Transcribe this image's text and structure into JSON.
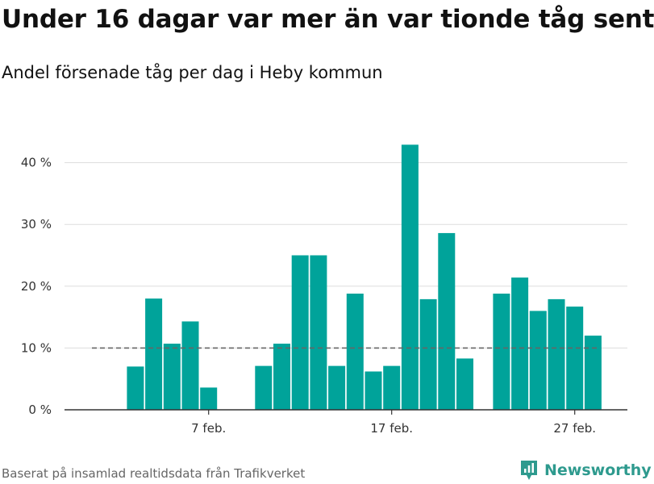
{
  "header": {
    "title": "Under 16 dagar var mer än var tionde tåg sent",
    "subtitle": "Andel försenade tåg per dag i Heby kommun"
  },
  "footer": {
    "source": "Baserat på insamlad realtidsdata från Trafikverket",
    "brand": "Newsworthy"
  },
  "colors": {
    "bar": "#00a39a",
    "reference_line": "#666666",
    "grid": "#dddddd",
    "axis": "#333333",
    "brand": "#2e9a8e"
  },
  "chart_data": {
    "type": "bar",
    "categories": [
      "1 feb.",
      "2 feb.",
      "3 feb.",
      "4 feb.",
      "5 feb.",
      "6 feb.",
      "7 feb.",
      "8 feb.",
      "9 feb.",
      "10 feb.",
      "11 feb.",
      "12 feb.",
      "13 feb.",
      "14 feb.",
      "15 feb.",
      "16 feb.",
      "17 feb.",
      "18 feb.",
      "19 feb.",
      "20 feb.",
      "21 feb.",
      "22 feb.",
      "23 feb.",
      "24 feb.",
      "25 feb.",
      "26 feb.",
      "27 feb.",
      "28 feb."
    ],
    "values": [
      null,
      null,
      7,
      18,
      10.7,
      14.3,
      3.6,
      null,
      null,
      7.1,
      10.7,
      25,
      25,
      7.1,
      18.8,
      6.2,
      7.1,
      42.9,
      17.9,
      28.6,
      8.3,
      null,
      18.8,
      21.4,
      16,
      17.9,
      16.7,
      12
    ],
    "reference_value": 10,
    "x_tick_labels": [
      {
        "category": "7 feb.",
        "label": "7 feb."
      },
      {
        "category": "17 feb.",
        "label": "17 feb."
      },
      {
        "category": "27 feb.",
        "label": "27 feb."
      }
    ],
    "y_ticks": [
      0,
      10,
      20,
      30,
      40
    ],
    "y_tick_labels": [
      "0 %",
      "10 %",
      "20 %",
      "30 %",
      "40 %"
    ],
    "ylim": [
      0,
      43
    ],
    "grid": true,
    "title": "Under 16 dagar var mer än var tionde tåg sent",
    "subtitle": "Andel försenade tåg per dag i Heby kommun",
    "xlabel": "",
    "ylabel": ""
  }
}
